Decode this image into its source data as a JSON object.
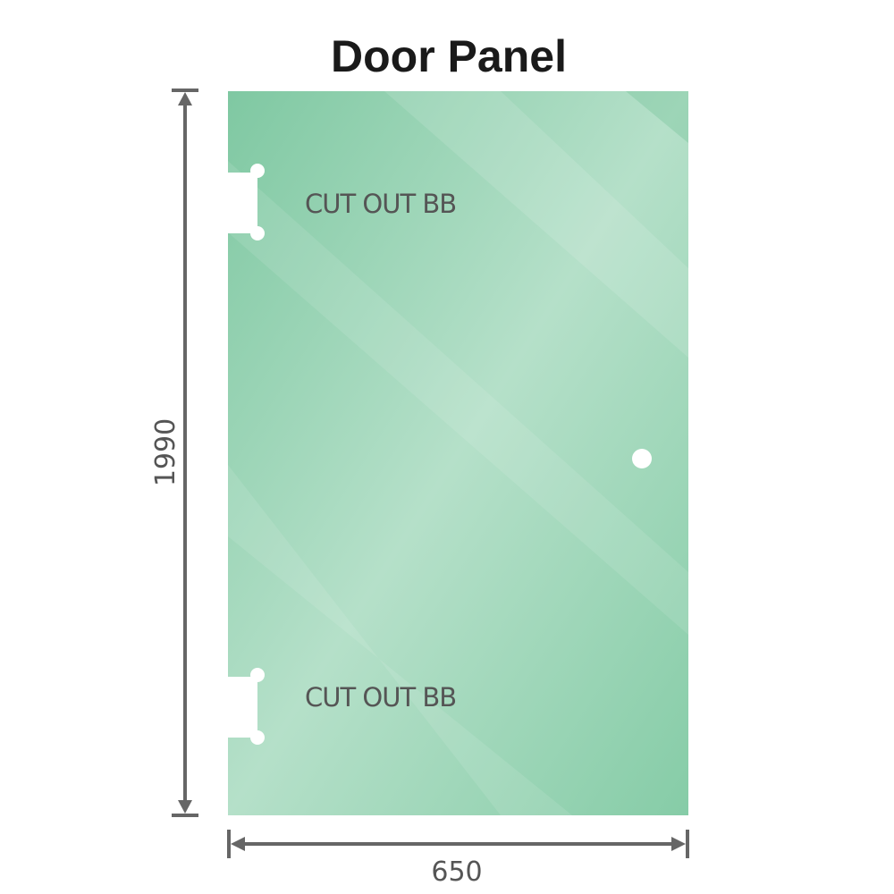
{
  "title": "Door Panel",
  "panel": {
    "glass_color": "#8fd0ae",
    "cutouts": [
      {
        "label": "CUT OUT BB"
      },
      {
        "label": "CUT OUT BB"
      }
    ],
    "handle_hole": true
  },
  "dimensions": {
    "height": "1990",
    "width": "650",
    "line_color": "#666666"
  }
}
